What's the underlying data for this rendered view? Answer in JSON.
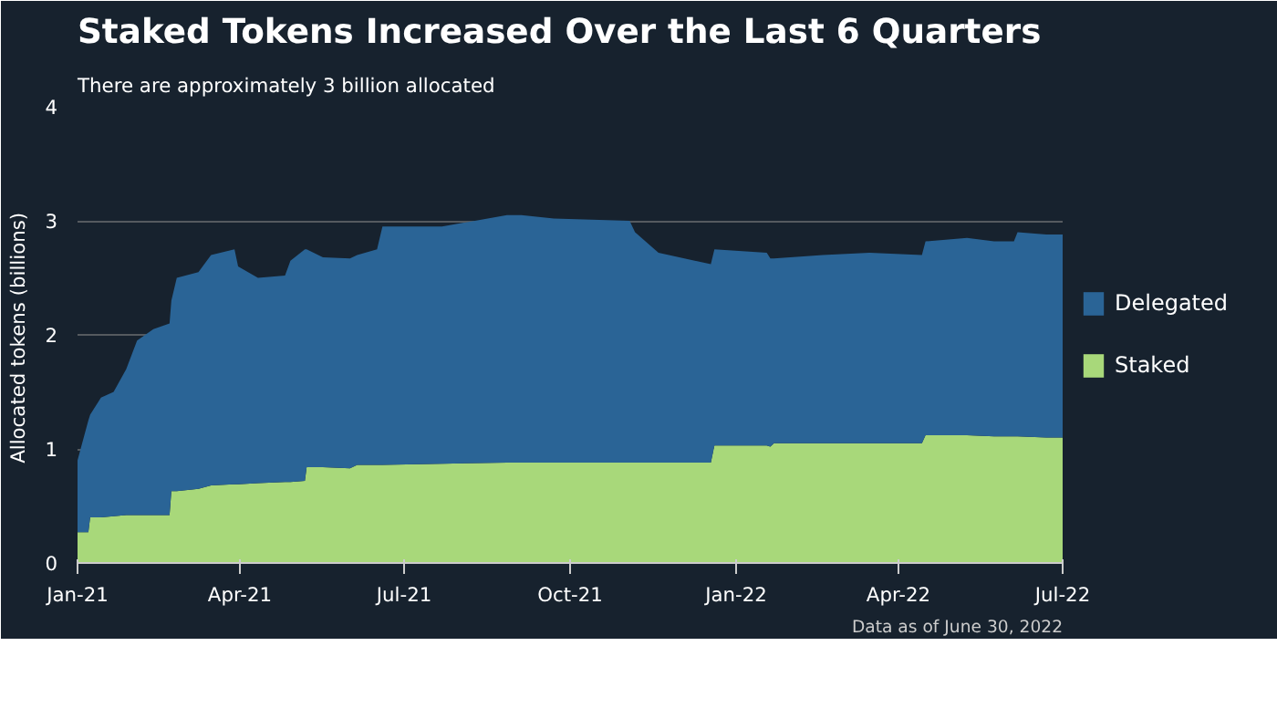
{
  "chart_data": {
    "type": "area",
    "stacked": true,
    "title": "Staked Tokens Increased Over the Last 6 Quarters",
    "subtitle": "There are approximately 3 billion allocated",
    "ylabel": "Allocated tokens  (billions)",
    "annotations": [
      "Data as of June 30, 2022"
    ],
    "x": [
      "2021-01-01",
      "2021-01-07",
      "2021-01-08",
      "2021-01-14",
      "2021-01-21",
      "2021-01-28",
      "2021-02-03",
      "2021-02-12",
      "2021-02-21",
      "2021-02-22",
      "2021-02-25",
      "2021-03-09",
      "2021-03-16",
      "2021-03-29",
      "2021-03-31",
      "2021-04-11",
      "2021-04-26",
      "2021-04-29",
      "2021-05-07",
      "2021-05-08",
      "2021-05-17",
      "2021-06-01",
      "2021-06-05",
      "2021-06-16",
      "2021-06-19",
      "2021-07-22",
      "2021-08-27",
      "2021-09-04",
      "2021-09-22",
      "2021-11-03",
      "2021-11-06",
      "2021-11-19",
      "2021-12-18",
      "2021-12-20",
      "2022-01-18",
      "2022-01-20",
      "2022-01-22",
      "2022-02-18",
      "2022-03-16",
      "2022-04-14",
      "2022-04-16",
      "2022-05-09",
      "2022-05-24",
      "2022-06-04",
      "2022-06-06",
      "2022-06-22",
      "2022-07-01"
    ],
    "series": [
      {
        "name": "Staked",
        "color": "#a8d87a",
        "values": [
          0.27,
          0.27,
          0.4,
          0.4,
          0.41,
          0.42,
          0.42,
          0.42,
          0.42,
          0.63,
          0.63,
          0.65,
          0.68,
          0.69,
          0.69,
          0.7,
          0.71,
          0.71,
          0.72,
          0.84,
          0.84,
          0.83,
          0.86,
          0.86,
          0.86,
          0.87,
          0.88,
          0.88,
          0.88,
          0.88,
          0.88,
          0.88,
          0.88,
          1.03,
          1.03,
          1.02,
          1.05,
          1.05,
          1.05,
          1.05,
          1.12,
          1.12,
          1.11,
          1.11,
          1.11,
          1.1,
          1.1
        ]
      },
      {
        "name": "Delegated",
        "color": "#2a6496",
        "values": [
          0.63,
          0.98,
          0.9,
          1.05,
          1.09,
          1.28,
          1.53,
          1.63,
          1.68,
          1.67,
          1.87,
          1.9,
          2.02,
          2.06,
          1.91,
          1.8,
          1.81,
          1.94,
          2.03,
          1.91,
          1.84,
          1.84,
          1.84,
          1.89,
          2.09,
          2.08,
          2.17,
          2.17,
          2.14,
          2.12,
          2.02,
          1.84,
          1.74,
          1.72,
          1.69,
          1.65,
          1.62,
          1.65,
          1.67,
          1.65,
          1.7,
          1.73,
          1.71,
          1.71,
          1.79,
          1.78,
          1.78
        ]
      }
    ],
    "xlim": [
      "2021-01-01",
      "2022-07-01"
    ],
    "xticks": [
      {
        "value": "2021-01-01",
        "label": "Jan-21"
      },
      {
        "value": "2021-04-01",
        "label": "Apr-21"
      },
      {
        "value": "2021-07-01",
        "label": "Jul-21"
      },
      {
        "value": "2021-10-01",
        "label": "Oct-21"
      },
      {
        "value": "2022-01-01",
        "label": "Jan-22"
      },
      {
        "value": "2022-04-01",
        "label": "Apr-22"
      },
      {
        "value": "2022-07-01",
        "label": "Jul-22"
      }
    ],
    "ylim": [
      0,
      4
    ],
    "yticks": [
      0,
      1,
      2,
      3,
      4
    ],
    "grid": "y",
    "legend": "right"
  }
}
